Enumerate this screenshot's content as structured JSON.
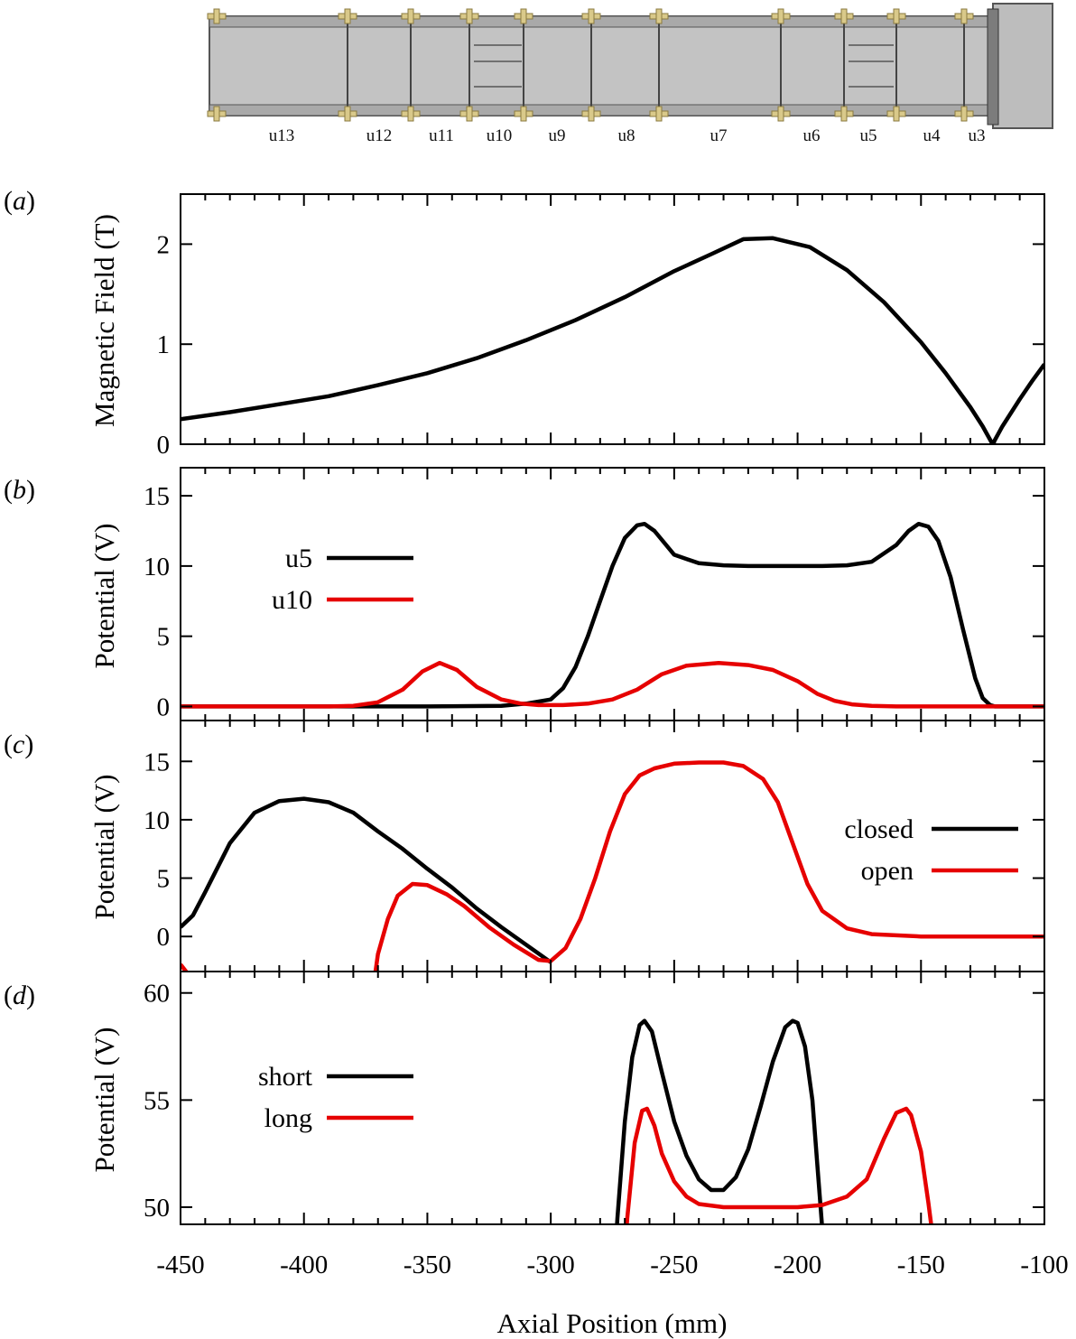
{
  "colors": {
    "black": "#000000",
    "red": "#e60000",
    "electrode_fill": "#c3c3c3",
    "electrode_edge": "#555555",
    "bolt": "#d9c98a"
  },
  "electrode_labels": [
    "u13",
    "u12",
    "u11",
    "u10",
    "u9",
    "u8",
    "u7",
    "u6",
    "u5",
    "u4",
    "u3"
  ],
  "xlabel": "Axial Position (mm)",
  "chart_data": [
    {
      "panel": "(a)",
      "type": "line",
      "ylabel": "Magnetic Field (T)",
      "xlim": [
        -450,
        -100
      ],
      "ylim": [
        0,
        2.5
      ],
      "x_ticks": [
        -450,
        -400,
        -350,
        -300,
        -250,
        -200,
        -150,
        -100
      ],
      "y_ticks": [
        0,
        1,
        2
      ],
      "grid": false,
      "legend": null,
      "series": [
        {
          "color": "#000000",
          "x": [
            -450,
            -430,
            -410,
            -390,
            -370,
            -350,
            -330,
            -310,
            -290,
            -270,
            -250,
            -235,
            -222,
            -210,
            -195,
            -180,
            -165,
            -150,
            -140,
            -130,
            -125,
            -121,
            -117,
            -110,
            -105,
            -100
          ],
          "y": [
            0.25,
            0.32,
            0.4,
            0.48,
            0.59,
            0.71,
            0.86,
            1.04,
            1.24,
            1.47,
            1.73,
            1.9,
            2.05,
            2.06,
            1.97,
            1.74,
            1.42,
            1.02,
            0.71,
            0.37,
            0.18,
            0.0,
            0.18,
            0.45,
            0.63,
            0.8
          ]
        }
      ]
    },
    {
      "panel": "(b)",
      "type": "line",
      "ylabel": "Potential (V)",
      "xlim": [
        -450,
        -100
      ],
      "ylim": [
        -1,
        17
      ],
      "x_ticks": [
        -450,
        -400,
        -350,
        -300,
        -250,
        -200,
        -150,
        -100
      ],
      "y_ticks": [
        0,
        5,
        10,
        15
      ],
      "grid": false,
      "legend": "left",
      "series": [
        {
          "name": "u5",
          "color": "#000000",
          "x": [
            -450,
            -400,
            -350,
            -320,
            -310,
            -300,
            -295,
            -290,
            -285,
            -280,
            -275,
            -270,
            -265,
            -262,
            -258,
            -250,
            -240,
            -230,
            -220,
            -210,
            -200,
            -190,
            -180,
            -170,
            -160,
            -155,
            -151,
            -147,
            -143,
            -138,
            -133,
            -128,
            -125,
            -122,
            -120,
            -110,
            -100
          ],
          "y": [
            0,
            0,
            0,
            0.05,
            0.2,
            0.5,
            1.3,
            2.8,
            5.0,
            7.5,
            10.0,
            12.0,
            12.9,
            13.0,
            12.5,
            10.8,
            10.2,
            10.05,
            10.0,
            10.0,
            10.0,
            10.0,
            10.05,
            10.3,
            11.5,
            12.5,
            13.0,
            12.8,
            11.8,
            9.2,
            5.5,
            2.0,
            0.6,
            0.1,
            0,
            0,
            0
          ]
        },
        {
          "name": "u10",
          "color": "#e60000",
          "x": [
            -450,
            -390,
            -380,
            -370,
            -360,
            -352,
            -345,
            -338,
            -330,
            -320,
            -312,
            -305,
            -295,
            -285,
            -275,
            -265,
            -255,
            -245,
            -232,
            -220,
            -210,
            -200,
            -192,
            -185,
            -178,
            -170,
            -160,
            -150,
            -100
          ],
          "y": [
            0,
            0,
            0.05,
            0.3,
            1.2,
            2.5,
            3.1,
            2.6,
            1.4,
            0.5,
            0.2,
            0.1,
            0.1,
            0.2,
            0.5,
            1.2,
            2.3,
            2.9,
            3.1,
            2.95,
            2.6,
            1.8,
            0.9,
            0.4,
            0.15,
            0.05,
            0,
            0,
            0
          ]
        }
      ]
    },
    {
      "panel": "(c)",
      "type": "line",
      "ylabel": "Potential (V)",
      "xlim": [
        -450,
        -100
      ],
      "ylim": [
        -3,
        18.5
      ],
      "x_ticks": [
        -450,
        -400,
        -350,
        -300,
        -250,
        -200,
        -150,
        -100
      ],
      "y_ticks": [
        0,
        5,
        10,
        15
      ],
      "grid": false,
      "legend": "right",
      "series": [
        {
          "name": "closed",
          "color": "#000000",
          "x": [
            -450,
            -445,
            -440,
            -430,
            -420,
            -410,
            -400,
            -390,
            -380,
            -370,
            -360,
            -350,
            -340,
            -330,
            -320,
            -310,
            -300
          ],
          "y": [
            0.8,
            1.8,
            3.8,
            8.0,
            10.6,
            11.6,
            11.8,
            11.5,
            10.6,
            9.0,
            7.5,
            5.8,
            4.2,
            2.4,
            0.8,
            -0.7,
            -2.2
          ]
        },
        {
          "name": "open",
          "color": "#e60000",
          "x": [
            -450,
            -447,
            -444,
            -372,
            -370,
            -366,
            -362,
            -356,
            -350,
            -342,
            -335,
            -325,
            -315,
            -305,
            -300,
            -294,
            -288,
            -282,
            -276,
            -270,
            -264,
            -258,
            -250,
            -240,
            -230,
            -222,
            -214,
            -208,
            -202,
            -196,
            -190,
            -180,
            -170,
            -150,
            -100
          ],
          "y": [
            -2.4,
            -3.2,
            -4.5,
            -4.5,
            -1.5,
            1.5,
            3.5,
            4.5,
            4.4,
            3.6,
            2.6,
            0.8,
            -0.7,
            -2.0,
            -2.1,
            -1.0,
            1.5,
            5.0,
            9.0,
            12.2,
            13.8,
            14.4,
            14.8,
            14.9,
            14.9,
            14.6,
            13.5,
            11.5,
            8.0,
            4.5,
            2.2,
            0.7,
            0.2,
            0,
            0
          ]
        }
      ]
    },
    {
      "panel": "(d)",
      "type": "line",
      "ylabel": "Potential (V)",
      "xlim": [
        -450,
        -100
      ],
      "ylim": [
        49.2,
        61
      ],
      "x_ticks": [
        -450,
        -400,
        -350,
        -300,
        -250,
        -200,
        -150,
        -100
      ],
      "y_ticks": [
        50,
        55,
        60
      ],
      "grid": false,
      "legend": "left",
      "series": [
        {
          "name": "short",
          "color": "#000000",
          "x": [
            -275,
            -273,
            -270,
            -267,
            -264,
            -262,
            -259,
            -255,
            -250,
            -245,
            -240,
            -235,
            -230,
            -225,
            -220,
            -215,
            -210,
            -205,
            -202,
            -200,
            -197,
            -194,
            -192,
            -190,
            -189
          ],
          "y": [
            46,
            49.5,
            54,
            57,
            58.5,
            58.7,
            58.2,
            56.3,
            54,
            52.4,
            51.3,
            50.8,
            50.8,
            51.4,
            52.7,
            54.7,
            56.8,
            58.4,
            58.7,
            58.6,
            57.5,
            55,
            52,
            49,
            46
          ]
        },
        {
          "name": "long",
          "color": "#e60000",
          "x": [
            -271,
            -269,
            -266,
            -263,
            -261,
            -258,
            -255,
            -250,
            -245,
            -240,
            -230,
            -220,
            -210,
            -200,
            -190,
            -180,
            -172,
            -165,
            -160,
            -156,
            -154,
            -150,
            -147,
            -144,
            -143
          ],
          "y": [
            46,
            49.5,
            53,
            54.5,
            54.6,
            53.8,
            52.5,
            51.2,
            50.5,
            50.15,
            50.0,
            50.0,
            50.0,
            50.0,
            50.1,
            50.5,
            51.3,
            53.2,
            54.4,
            54.6,
            54.3,
            52.6,
            50.2,
            47.5,
            46
          ]
        }
      ]
    }
  ]
}
